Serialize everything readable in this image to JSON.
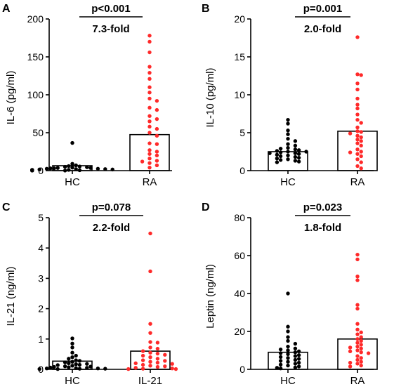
{
  "colors": {
    "control": "#000000",
    "patient": "#ff2a2a",
    "axis": "#000000",
    "background": "#ffffff"
  },
  "chart_data": [
    {
      "type": "scatter",
      "panel_label": "A",
      "ylabel": "IL-6 (pg/ml)",
      "ylim": [
        0,
        200
      ],
      "yticks": [
        0,
        50,
        100,
        150,
        200
      ],
      "categories": [
        "HC",
        "RA"
      ],
      "p_value": "p<0.001",
      "fold_change": "7.3-fold",
      "bars": [
        6.5,
        47.5
      ],
      "series": [
        {
          "name": "HC",
          "values": [
            36.5,
            9,
            7,
            6,
            5.5,
            5,
            4.5,
            4,
            3.5,
            3.5,
            3,
            3,
            2.5,
            2.5,
            2,
            2,
            1.5,
            1.5,
            1,
            1,
            1,
            0.5,
            0.5,
            0.5,
            0.3,
            0.3,
            0.2,
            0.2,
            0.1,
            0.1
          ]
        },
        {
          "name": "RA",
          "values": [
            178,
            170,
            156,
            137,
            129,
            121,
            110,
            103,
            95,
            92,
            83,
            80,
            72,
            68,
            65,
            58,
            55,
            50,
            46,
            36,
            35,
            27,
            25,
            22,
            20,
            16,
            13,
            12,
            10,
            7,
            4
          ]
        }
      ]
    },
    {
      "type": "scatter",
      "panel_label": "B",
      "ylabel": "IL-10 (pg/ml)",
      "ylim": [
        0,
        20
      ],
      "yticks": [
        0,
        5,
        10,
        15,
        20
      ],
      "categories": [
        "HC",
        "RA"
      ],
      "p_value": "p=0.001",
      "fold_change": "2.0-fold",
      "bars": [
        2.5,
        5.2
      ],
      "series": [
        {
          "name": "HC",
          "values": [
            6.7,
            6.2,
            5.3,
            4.8,
            4.2,
            3.9,
            3.5,
            3.3,
            3.0,
            2.9,
            2.8,
            2.7,
            2.6,
            2.5,
            2.5,
            2.4,
            2.3,
            2.3,
            2.2,
            2.1,
            2.0,
            1.9,
            1.8,
            1.7,
            1.6,
            1.5,
            1.4,
            1.3,
            1.2,
            1.1
          ]
        },
        {
          "name": "RA",
          "values": [
            17.6,
            12.7,
            12.6,
            11.5,
            10.7,
            9.5,
            8.7,
            8.2,
            7.4,
            6.7,
            6.3,
            5.7,
            5.2,
            5.1,
            4.9,
            4.6,
            4.4,
            4.1,
            3.9,
            3.6,
            3.3,
            2.8,
            2.5,
            2.4,
            2.2,
            1.9,
            1.5,
            1.1,
            0.6,
            0.3
          ]
        }
      ]
    },
    {
      "type": "scatter",
      "panel_label": "C",
      "ylabel": "IL-21 (ng/ml)",
      "ylim": [
        0,
        5
      ],
      "yticks": [
        0,
        1,
        2,
        3,
        4,
        5
      ],
      "categories": [
        "HC",
        "IL-21"
      ],
      "p_value": "p=0.078",
      "fold_change": "2.2-fold",
      "bars": [
        0.27,
        0.6
      ],
      "series": [
        {
          "name": "HC",
          "values": [
            1.02,
            0.85,
            0.72,
            0.55,
            0.45,
            0.4,
            0.35,
            0.3,
            0.28,
            0.25,
            0.23,
            0.2,
            0.18,
            0.17,
            0.15,
            0.14,
            0.12,
            0.1,
            0.09,
            0.08,
            0.07,
            0.06,
            0.05,
            0.04,
            0.03,
            0.03,
            0.02,
            0.02,
            0.01,
            0.01
          ]
        },
        {
          "name": "IL-21",
          "values": [
            4.48,
            3.23,
            1.5,
            1.2,
            0.9,
            0.88,
            0.72,
            0.68,
            0.6,
            0.55,
            0.52,
            0.48,
            0.45,
            0.4,
            0.35,
            0.3,
            0.28,
            0.25,
            0.22,
            0.2,
            0.18,
            0.15,
            0.12,
            0.1,
            0.08,
            0.05,
            0.03,
            0.02,
            0.01,
            0.01
          ]
        }
      ]
    },
    {
      "type": "scatter",
      "panel_label": "D",
      "ylabel": "Leptin (ng/ml)",
      "ylim": [
        0,
        80
      ],
      "yticks": [
        0,
        20,
        40,
        60,
        80
      ],
      "categories": [
        "HC",
        "RA"
      ],
      "p_value": "p=0.023",
      "fold_change": "1.8-fold",
      "bars": [
        9,
        16
      ],
      "series": [
        {
          "name": "HC",
          "values": [
            40,
            22.5,
            20,
            17,
            15,
            13.5,
            12,
            11,
            10.5,
            10,
            9.5,
            9,
            8.5,
            8,
            7.5,
            7,
            6.5,
            6,
            5.5,
            5,
            4.5,
            4,
            3.5,
            3,
            2.5,
            2,
            1.5,
            1,
            0.8,
            0.5
          ]
        },
        {
          "name": "RA",
          "values": [
            60.5,
            58,
            49,
            47,
            34,
            32,
            24,
            21,
            19.5,
            18.5,
            17,
            16,
            15,
            14,
            13,
            12,
            11.5,
            11,
            10,
            9.5,
            9,
            8.5,
            7,
            6,
            5,
            4,
            3.5,
            3,
            2,
            1.5
          ]
        }
      ]
    }
  ]
}
